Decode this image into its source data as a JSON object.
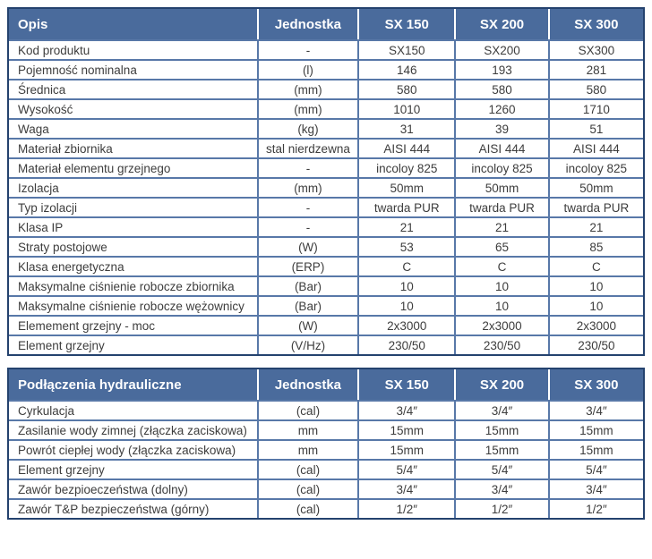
{
  "colors": {
    "header_bg": "#4a6b9c",
    "outer_border": "#24426e",
    "grid_border": "#5878a8",
    "header_text": "#ffffff",
    "body_text": "#3d3d3d",
    "page_bg": "#ffffff"
  },
  "tables": [
    {
      "name": "specs-table",
      "headers": [
        "Opis",
        "Jednostka",
        "SX 150",
        "SX 200",
        "SX 300"
      ],
      "rows": [
        [
          "Kod produktu",
          "-",
          "SX150",
          "SX200",
          "SX300"
        ],
        [
          "Pojemność nominalna",
          "(l)",
          "146",
          "193",
          "281"
        ],
        [
          "Średnica",
          "(mm)",
          "580",
          "580",
          "580"
        ],
        [
          "Wysokość",
          "(mm)",
          "1010",
          "1260",
          "1710"
        ],
        [
          "Waga",
          "(kg)",
          "31",
          "39",
          "51"
        ],
        [
          "Materiał zbiornika",
          "stal nierdzewna",
          "AISI 444",
          "AISI 444",
          "AISI 444"
        ],
        [
          "Materiał elementu grzejnego",
          "-",
          "incoloy 825",
          "incoloy 825",
          "incoloy 825"
        ],
        [
          "Izolacja",
          "(mm)",
          "50mm",
          "50mm",
          "50mm"
        ],
        [
          "Typ izolacji",
          "-",
          "twarda PUR",
          "twarda PUR",
          "twarda PUR"
        ],
        [
          "Klasa IP",
          "-",
          "21",
          "21",
          "21"
        ],
        [
          "Straty postojowe",
          "(W)",
          "53",
          "65",
          "85"
        ],
        [
          "Klasa energetyczna",
          "(ERP)",
          "C",
          "C",
          "C"
        ],
        [
          "Maksymalne ciśnienie robocze zbiornika",
          "(Bar)",
          "10",
          "10",
          "10"
        ],
        [
          "Maksymalne ciśnienie robocze wężownicy",
          "(Bar)",
          "10",
          "10",
          "10"
        ],
        [
          "Elemement grzejny - moc",
          "(W)",
          "2x3000",
          "2x3000",
          "2x3000"
        ],
        [
          "Element grzejny",
          "(V/Hz)",
          "230/50",
          "230/50",
          "230/50"
        ]
      ]
    },
    {
      "name": "hydraulic-connections-table",
      "headers": [
        "Podłączenia hydrauliczne",
        "Jednostka",
        "SX 150",
        "SX 200",
        "SX 300"
      ],
      "rows": [
        [
          "Cyrkulacja",
          "(cal)",
          "3/4″",
          "3/4″",
          "3/4″"
        ],
        [
          "Zasilanie wody zimnej (złączka zaciskowa)",
          "mm",
          "15mm",
          "15mm",
          "15mm"
        ],
        [
          "Powrót ciepłej wody (złączka zaciskowa)",
          "mm",
          "15mm",
          "15mm",
          "15mm"
        ],
        [
          "Element grzejny",
          "(cal)",
          "5/4″",
          "5/4″",
          "5/4″"
        ],
        [
          "Zawór bezpioeczeństwa (dolny)",
          "(cal)",
          "3/4″",
          "3/4″",
          "3/4″"
        ],
        [
          "Zawór T&P bezpieczeństwa (górny)",
          "(cal)",
          "1/2″",
          "1/2″",
          "1/2″"
        ]
      ]
    }
  ]
}
